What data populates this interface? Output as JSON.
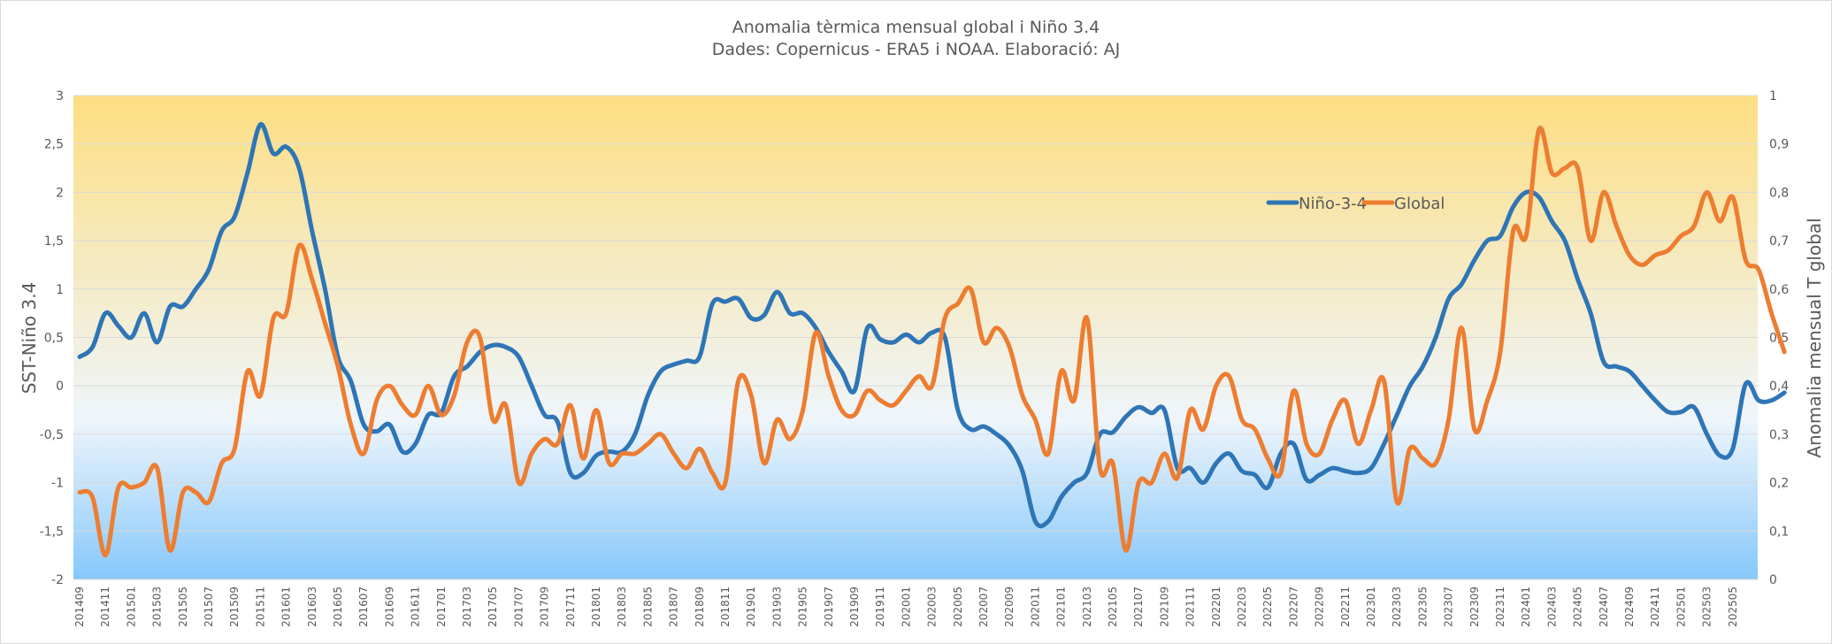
{
  "chart_data": {
    "type": "line",
    "title": "Anomalia tèrmica mensual global i Niño 3.4",
    "subtitle": "Dades: Copernicus - ERA5 i NOAA. Elaboració: AJ",
    "ylabel_left": "SST-Niño 3.4",
    "ylabel_right": "Anomalia mensual T global",
    "ylim_left": [
      -2,
      3
    ],
    "ylim_right": [
      0,
      1
    ],
    "yticks_left": [
      "-2",
      "-1,5",
      "-1",
      "-0,5",
      "0",
      "0,5",
      "1",
      "1,5",
      "2",
      "2,5",
      "3"
    ],
    "yticks_right": [
      "0",
      "0,1",
      "0,2",
      "0,3",
      "0,4",
      "0,5",
      "0,6",
      "0,7",
      "0,8",
      "0,9",
      "1"
    ],
    "grid": true,
    "legend_position": "top-right",
    "colors": {
      "nino": "#2e75b6",
      "global": "#ed7d31",
      "bg_top": "#fdde82",
      "bg_mid": "#eef5fb",
      "bg_bottom": "#86c8fb"
    },
    "x_start": "201409",
    "x_tick_labels": [
      "201409",
      "201411",
      "201501",
      "201503",
      "201505",
      "201507",
      "201509",
      "201511",
      "201601",
      "201603",
      "201605",
      "201607",
      "201609",
      "201611",
      "201701",
      "201703",
      "201705",
      "201707",
      "201709",
      "201711",
      "201801",
      "201803",
      "201805",
      "201807",
      "201809",
      "201811",
      "201901",
      "201903",
      "201905",
      "201907",
      "201909",
      "201911",
      "202001",
      "202003",
      "202005",
      "202007",
      "202009",
      "202011",
      "202101",
      "202103",
      "202105",
      "202107",
      "202109",
      "202111",
      "202201",
      "202203",
      "202205",
      "202207",
      "202209",
      "202211",
      "202301",
      "202303",
      "202305",
      "202307",
      "202309",
      "202311",
      "202401",
      "202403",
      "202405",
      "202407",
      "202409",
      "202411",
      "202501",
      "202503",
      "202505"
    ],
    "series": [
      {
        "name": "Niño-3-4",
        "axis": "left",
        "values": [
          0.3,
          0.4,
          0.75,
          0.62,
          0.5,
          0.75,
          0.45,
          0.82,
          0.82,
          1.0,
          1.2,
          1.6,
          1.75,
          2.2,
          2.7,
          2.4,
          2.47,
          2.25,
          1.6,
          1.0,
          0.3,
          0.05,
          -0.4,
          -0.47,
          -0.4,
          -0.68,
          -0.6,
          -0.3,
          -0.28,
          0.1,
          0.2,
          0.35,
          0.42,
          0.4,
          0.3,
          0.0,
          -0.3,
          -0.37,
          -0.9,
          -0.9,
          -0.72,
          -0.68,
          -0.68,
          -0.5,
          -0.1,
          0.15,
          0.22,
          0.26,
          0.3,
          0.85,
          0.87,
          0.9,
          0.7,
          0.73,
          0.97,
          0.75,
          0.75,
          0.6,
          0.35,
          0.15,
          -0.05,
          0.6,
          0.48,
          0.45,
          0.53,
          0.45,
          0.55,
          0.5,
          -0.25,
          -0.45,
          -0.42,
          -0.5,
          -0.62,
          -0.88,
          -1.4,
          -1.4,
          -1.15,
          -1.0,
          -0.9,
          -0.5,
          -0.48,
          -0.32,
          -0.22,
          -0.28,
          -0.25,
          -0.85,
          -0.85,
          -1.0,
          -0.8,
          -0.7,
          -0.88,
          -0.92,
          -1.05,
          -0.7,
          -0.6,
          -0.97,
          -0.92,
          -0.85,
          -0.88,
          -0.9,
          -0.85,
          -0.6,
          -0.3,
          0.0,
          0.2,
          0.5,
          0.9,
          1.05,
          1.3,
          1.5,
          1.55,
          1.85,
          2.0,
          1.95,
          1.7,
          1.5,
          1.1,
          0.75,
          0.25,
          0.2,
          0.15,
          0.0,
          -0.15,
          -0.27,
          -0.27,
          -0.22,
          -0.5,
          -0.72,
          -0.65,
          0.02,
          -0.15,
          -0.15,
          -0.07
        ]
      },
      {
        "name": "Global",
        "axis": "right",
        "values": [
          0.18,
          0.17,
          0.05,
          0.19,
          0.19,
          0.2,
          0.23,
          0.06,
          0.18,
          0.18,
          0.16,
          0.24,
          0.27,
          0.43,
          0.38,
          0.54,
          0.55,
          0.69,
          0.62,
          0.53,
          0.44,
          0.32,
          0.26,
          0.37,
          0.4,
          0.36,
          0.34,
          0.4,
          0.34,
          0.38,
          0.49,
          0.5,
          0.33,
          0.36,
          0.2,
          0.26,
          0.29,
          0.28,
          0.36,
          0.25,
          0.35,
          0.24,
          0.26,
          0.26,
          0.28,
          0.3,
          0.26,
          0.23,
          0.27,
          0.22,
          0.2,
          0.41,
          0.38,
          0.24,
          0.33,
          0.29,
          0.35,
          0.51,
          0.42,
          0.35,
          0.34,
          0.39,
          0.37,
          0.36,
          0.39,
          0.42,
          0.4,
          0.54,
          0.57,
          0.6,
          0.49,
          0.52,
          0.48,
          0.38,
          0.33,
          0.26,
          0.43,
          0.37,
          0.54,
          0.23,
          0.24,
          0.06,
          0.2,
          0.2,
          0.26,
          0.21,
          0.35,
          0.31,
          0.4,
          0.42,
          0.33,
          0.31,
          0.25,
          0.22,
          0.39,
          0.28,
          0.26,
          0.33,
          0.37,
          0.28,
          0.35,
          0.41,
          0.16,
          0.27,
          0.25,
          0.24,
          0.33,
          0.52,
          0.31,
          0.37,
          0.47,
          0.72,
          0.71,
          0.93,
          0.84,
          0.85,
          0.85,
          0.7,
          0.8,
          0.73,
          0.67,
          0.65,
          0.67,
          0.68,
          0.71,
          0.73,
          0.8,
          0.74,
          0.79,
          0.66,
          0.64,
          0.55,
          0.47
        ]
      }
    ]
  }
}
